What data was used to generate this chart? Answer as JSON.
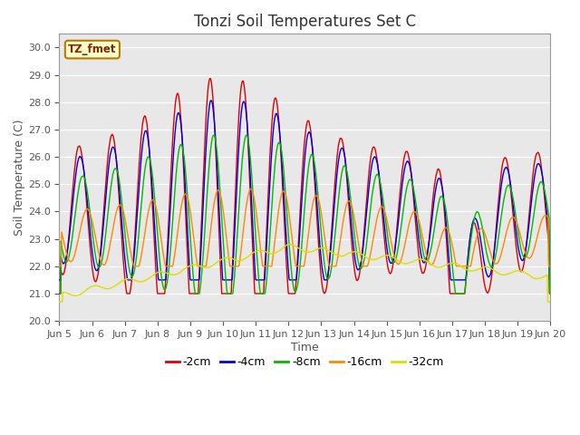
{
  "title": "Tonzi Soil Temperatures Set C",
  "xlabel": "Time",
  "ylabel": "Soil Temperature (C)",
  "ylim": [
    20.0,
    30.5
  ],
  "yticks": [
    20.0,
    21.0,
    22.0,
    23.0,
    24.0,
    25.0,
    26.0,
    27.0,
    28.0,
    29.0,
    30.0
  ],
  "xlim": [
    5,
    20
  ],
  "xtick_vals": [
    5,
    6,
    7,
    8,
    9,
    10,
    11,
    12,
    13,
    14,
    15,
    16,
    17,
    18,
    19,
    20
  ],
  "xtick_labels": [
    "Jun 5",
    "Jun 6",
    "Jun 7",
    "Jun 8",
    "Jun 9",
    "Jun 10",
    "Jun 11",
    "Jun 12",
    "Jun 13",
    "Jun 14",
    "Jun 15",
    "Jun 16",
    "Jun 17",
    "Jun 18",
    "Jun 19",
    "Jun 20"
  ],
  "colors": {
    "-2cm": "#dd0000",
    "-4cm": "#0000dd",
    "-8cm": "#00bb00",
    "-16cm": "#ff8800",
    "-32cm": "#dddd00"
  },
  "annotation_label": "TZ_fmet",
  "legend_labels": [
    "-2cm",
    "-4cm",
    "-8cm",
    "-16cm",
    "-32cm"
  ],
  "fig_bg_color": "#ffffff",
  "plot_bg_color": "#e8e8e8",
  "grid_color": "#ffffff",
  "title_fontsize": 12,
  "axis_label_fontsize": 9,
  "tick_fontsize": 8
}
